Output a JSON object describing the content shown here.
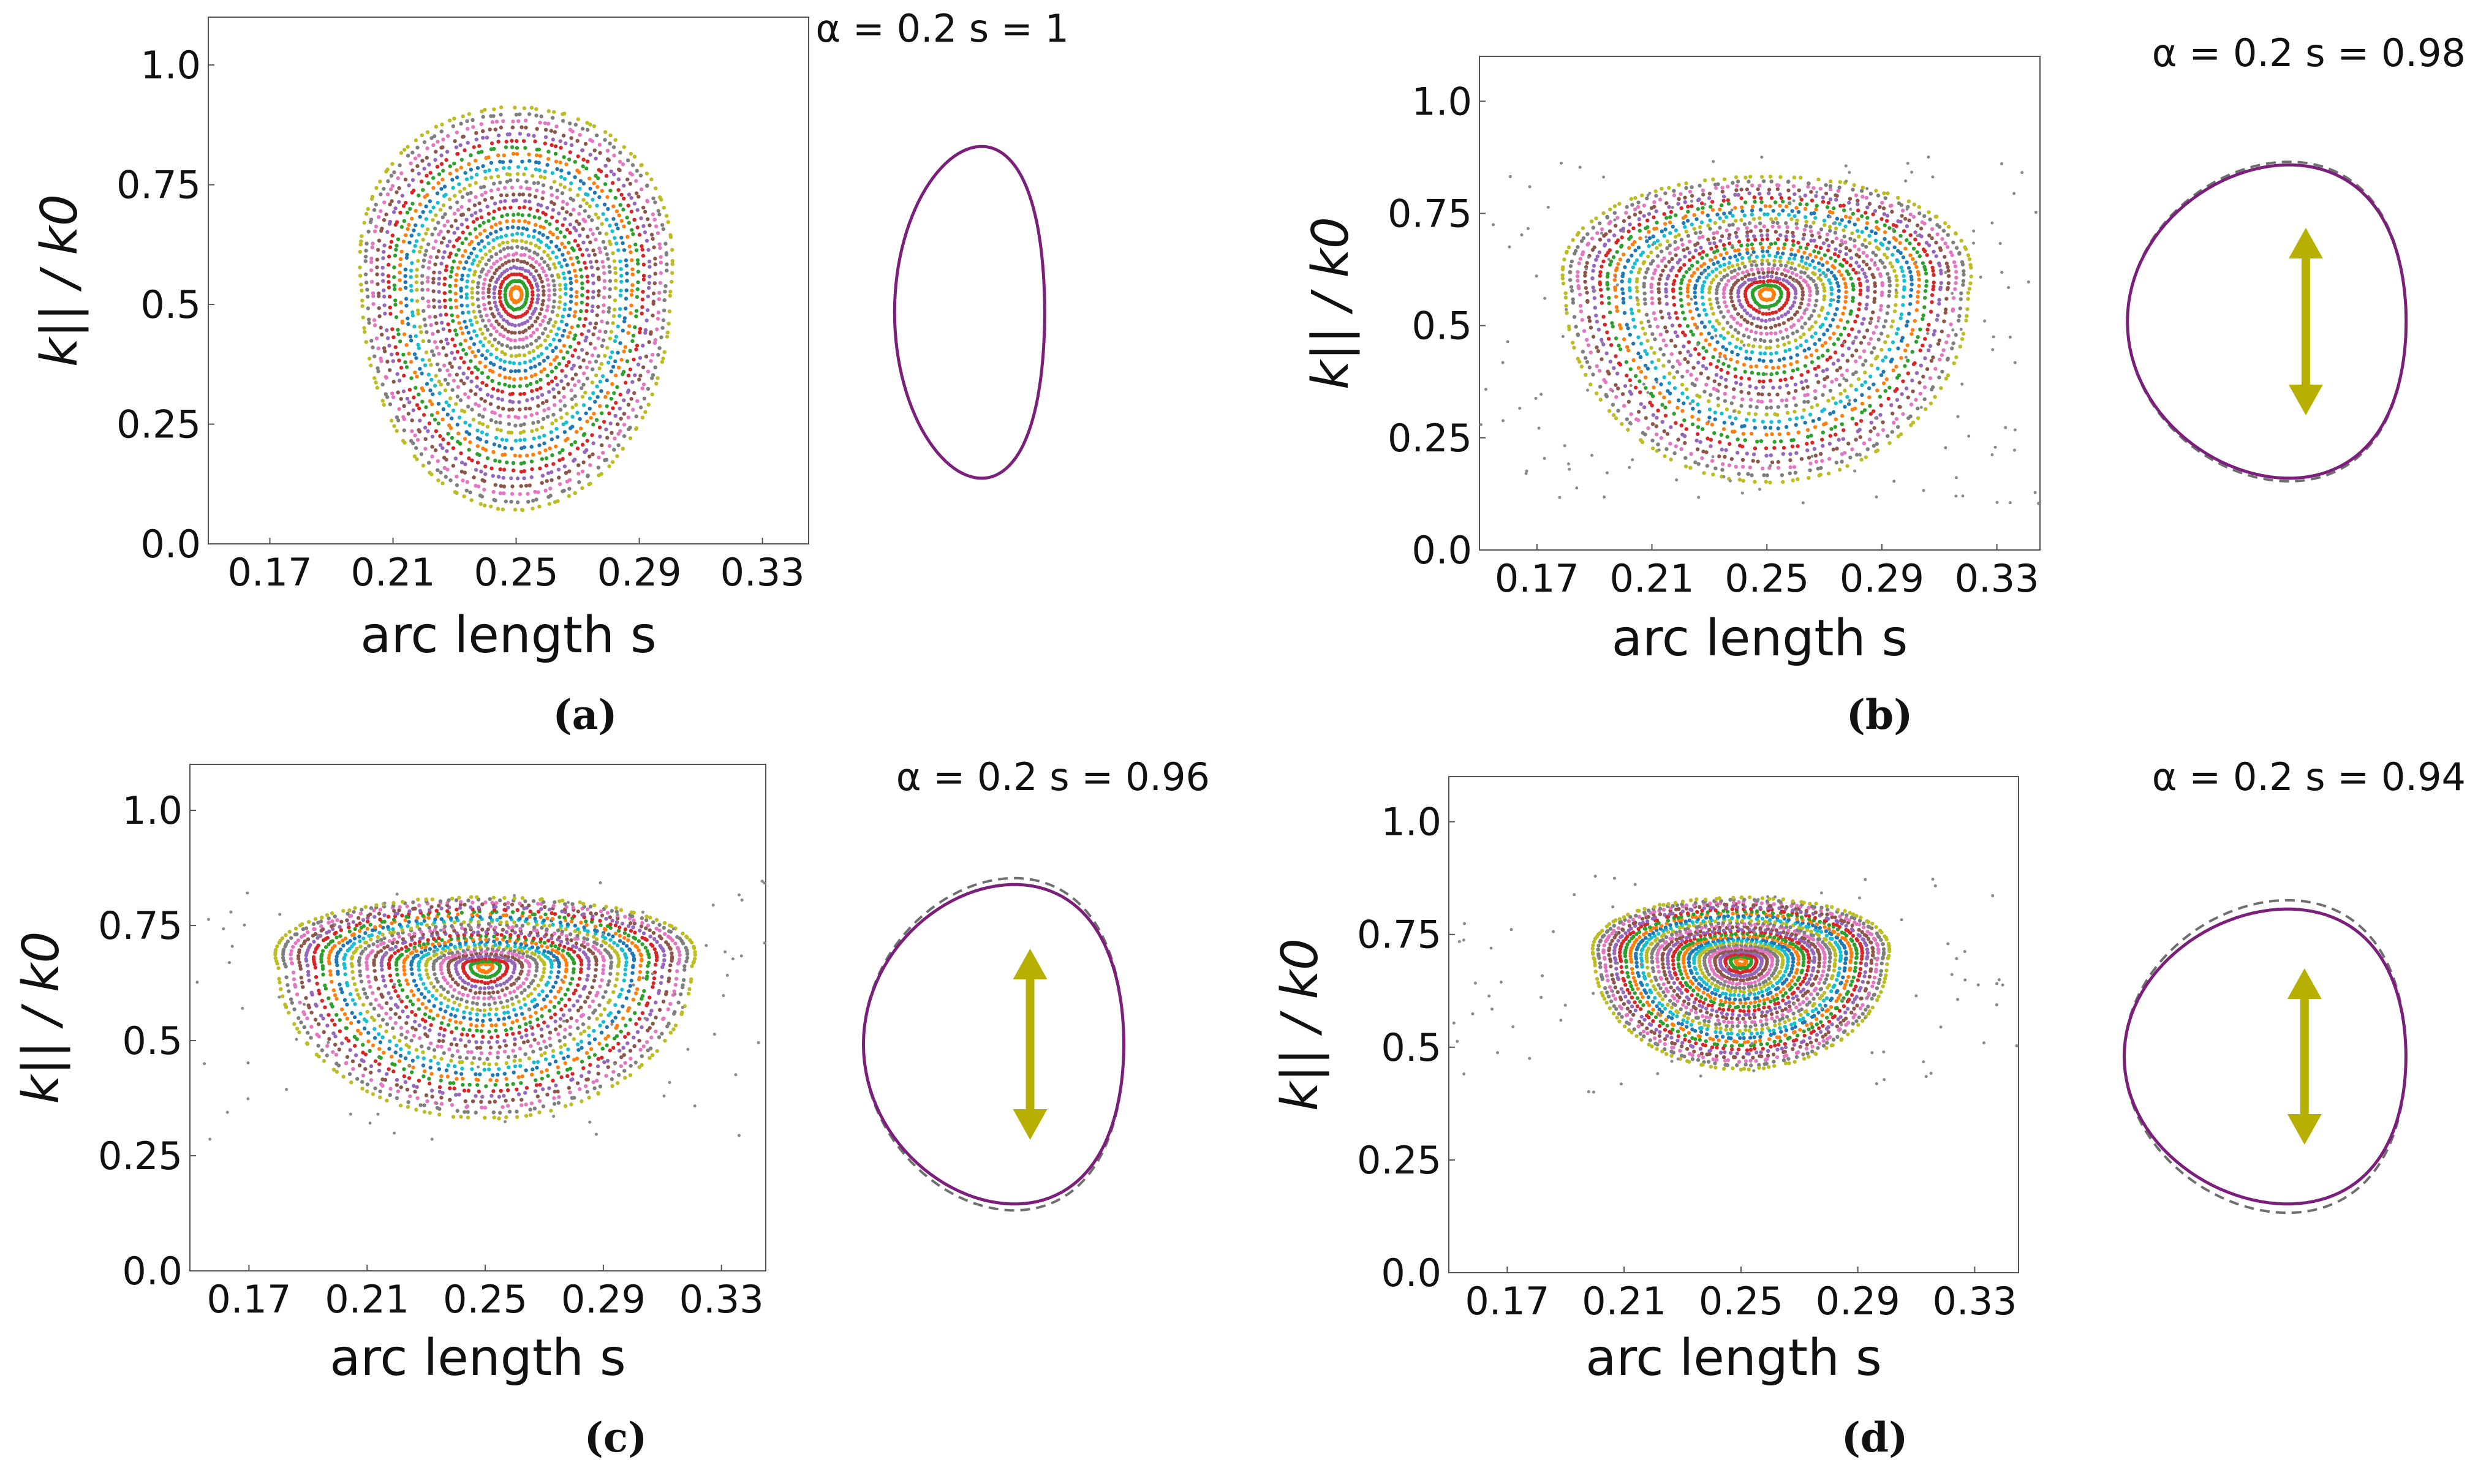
{
  "colors": {
    "frame": "#555555",
    "tick_text": "#111111",
    "curve": "#7a1f7a",
    "dashed": "#6f6f6f",
    "arrow": "#b8b000",
    "points": [
      "#1f77b4",
      "#ff7f0e",
      "#2ca02c",
      "#d62728",
      "#9467bd",
      "#8c564b",
      "#e377c2",
      "#7f7f7f",
      "#bcbd22",
      "#17becf"
    ]
  },
  "chart_data": [
    {
      "type": "scatter",
      "panel_label": "(a)",
      "title": "α = 0.2   s = 1",
      "xlabel": "arc length s",
      "ylabel": "k|| / k0",
      "xlim": [
        0.15,
        0.345
      ],
      "ylim": [
        0.0,
        1.1
      ],
      "x_ticks": [
        "0.17",
        "0.21",
        "0.25",
        "0.29",
        "0.33"
      ],
      "y_ticks": [
        "0.0",
        "0.25",
        "0.5",
        "0.75",
        "1.0"
      ],
      "center": [
        0.25,
        0.52
      ],
      "outer_extent": {
        "s": [
          0.205,
          0.3
        ],
        "k": [
          0.07,
          0.91
        ]
      },
      "shape_dashed_offset": 0.0,
      "arrow_shown": false
    },
    {
      "type": "scatter",
      "panel_label": "(b)",
      "title": "α = 0.2   s = 0.98",
      "xlabel": "arc length s",
      "ylabel": "k|| / k0",
      "xlim": [
        0.15,
        0.345
      ],
      "ylim": [
        0.0,
        1.1
      ],
      "x_ticks": [
        "0.17",
        "0.21",
        "0.25",
        "0.29",
        "0.33"
      ],
      "y_ticks": [
        "0.0",
        "0.25",
        "0.5",
        "0.75",
        "1.0"
      ],
      "center": [
        0.25,
        0.57
      ],
      "outer_extent": {
        "s": [
          0.18,
          0.318
        ],
        "k": [
          0.15,
          0.83
        ]
      },
      "shape_dashed_offset": 0.02,
      "arrow_shown": true
    },
    {
      "type": "scatter",
      "panel_label": "(c)",
      "title": "α = 0.2   s = 0.96",
      "xlabel": "arc length s",
      "ylabel": "k|| / k0",
      "xlim": [
        0.15,
        0.345
      ],
      "ylim": [
        0.0,
        1.1
      ],
      "x_ticks": [
        "0.17",
        "0.21",
        "0.25",
        "0.29",
        "0.33"
      ],
      "y_ticks": [
        "0.0",
        "0.25",
        "0.5",
        "0.75",
        "1.0"
      ],
      "center": [
        0.25,
        0.66
      ],
      "outer_extent": {
        "s": [
          0.18,
          0.318
        ],
        "k": [
          0.33,
          0.81
        ]
      },
      "shape_dashed_offset": 0.04,
      "arrow_shown": true
    },
    {
      "type": "scatter",
      "panel_label": "(d)",
      "title": "α = 0.2   s = 0.94",
      "xlabel": "arc length s",
      "ylabel": "k|| / k0",
      "xlim": [
        0.15,
        0.345
      ],
      "ylim": [
        0.0,
        1.1
      ],
      "x_ticks": [
        "0.17",
        "0.21",
        "0.25",
        "0.29",
        "0.33"
      ],
      "y_ticks": [
        "0.0",
        "0.25",
        "0.5",
        "0.75",
        "1.0"
      ],
      "center": [
        0.25,
        0.69
      ],
      "outer_extent": {
        "s": [
          0.2,
          0.3
        ],
        "k": [
          0.45,
          0.83
        ]
      },
      "shape_dashed_offset": 0.06,
      "arrow_shown": true
    }
  ]
}
